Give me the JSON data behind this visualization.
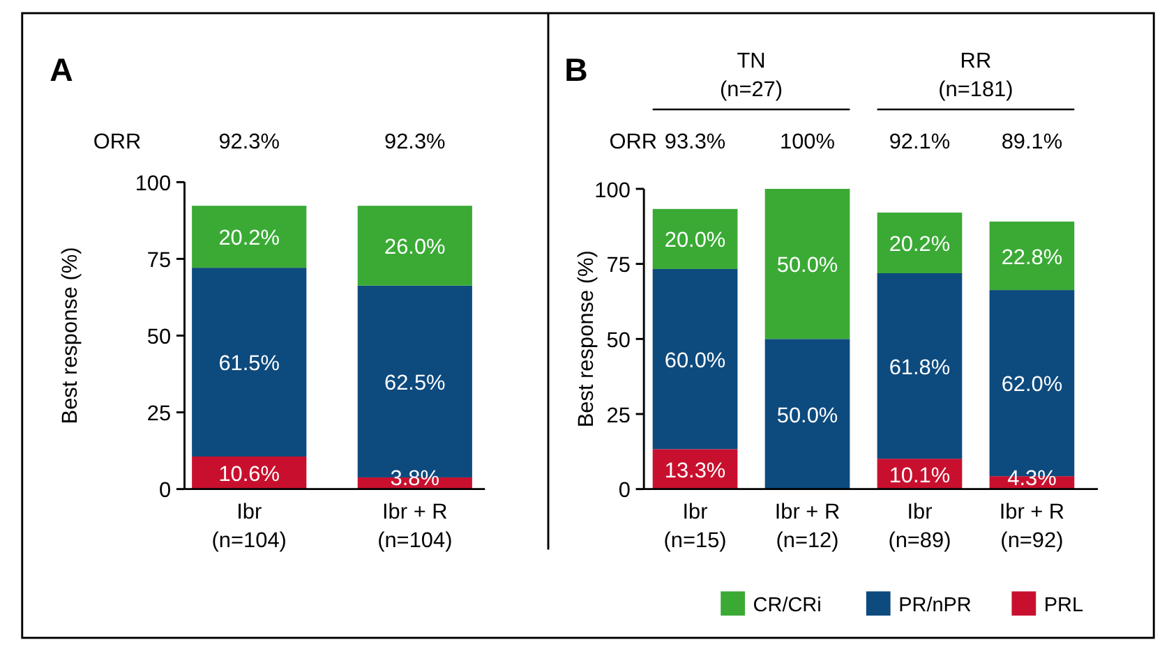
{
  "chart_data": [
    {
      "type": "bar",
      "title": "A",
      "stacked": true,
      "categories": [
        "Ibr\n(n=104)",
        "Ibr + R\n(n=104)"
      ],
      "ylabel": "Best response (%)",
      "ylim": [
        0,
        100
      ],
      "yticks": [
        0,
        25,
        50,
        75,
        100
      ],
      "grid": false,
      "legend": false,
      "annotations": [
        "ORR"
      ],
      "totals": [
        "92.3%",
        "92.3%"
      ],
      "series": [
        {
          "color": "#c8102e",
          "values": [
            10.6,
            3.8
          ],
          "value_labels": [
            "10.6%",
            "3.8%"
          ]
        },
        {
          "color": "#0d4a7e",
          "values": [
            61.5,
            62.5
          ],
          "value_labels": [
            "61.5%",
            "62.5%"
          ]
        },
        {
          "color": "#3aaa35",
          "values": [
            20.2,
            26.0
          ],
          "value_labels": [
            "20.2%",
            "26.0%"
          ]
        }
      ]
    },
    {
      "type": "bar",
      "title": "B",
      "stacked": true,
      "categories": [
        "Ibr\n(n=15)",
        "Ibr + R\n(n=12)",
        "Ibr\n(n=89)",
        "Ibr + R\n(n=92)"
      ],
      "ylabel": "Best response (%)",
      "ylim": [
        0,
        100
      ],
      "yticks": [
        0,
        25,
        50,
        75,
        100
      ],
      "grid": false,
      "legend": "bottom right",
      "annotations": [
        "ORR",
        "TN\n(n=27)",
        "RR\n(n=181)"
      ],
      "totals": [
        "93.3%",
        "100%",
        "92.1%",
        "89.1%"
      ],
      "series": [
        {
          "name": "PRL",
          "color": "#c8102e",
          "values": [
            13.3,
            0,
            10.1,
            4.3
          ],
          "value_labels": [
            "13.3%",
            null,
            "10.1%",
            "4.3%"
          ]
        },
        {
          "name": "PR/nPR",
          "color": "#0d4a7e",
          "values": [
            60.0,
            50.0,
            61.8,
            62.0
          ],
          "value_labels": [
            "60.0%",
            "50.0%",
            "61.8%",
            "62.0%"
          ]
        },
        {
          "name": "CR/CRi",
          "color": "#3aaa35",
          "values": [
            20.0,
            50.0,
            20.2,
            22.8
          ],
          "value_labels": [
            "20.0%",
            "50.0%",
            "20.2%",
            "22.8%"
          ]
        }
      ]
    }
  ]
}
